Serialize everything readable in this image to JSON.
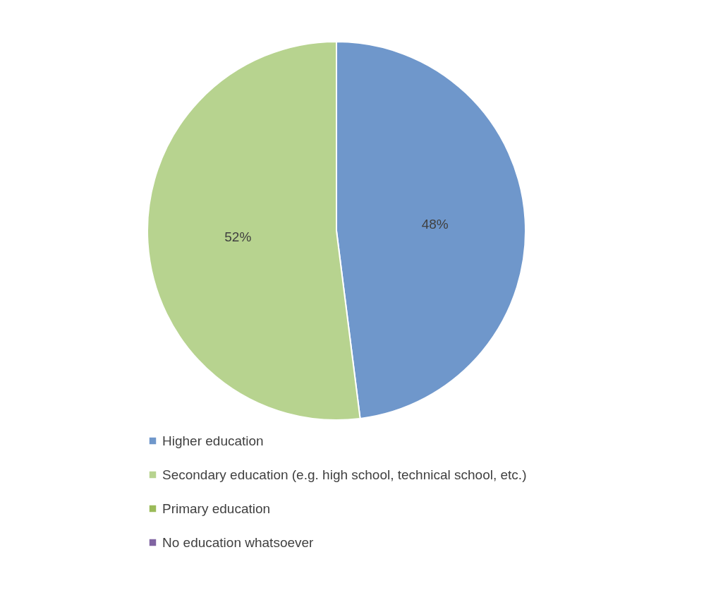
{
  "chart_data": {
    "type": "pie",
    "categories": [
      "Higher education",
      "Secondary education (e.g. high school, technical school, etc.)",
      "Primary education",
      "No education whatsoever"
    ],
    "values": [
      48,
      52,
      0,
      0
    ],
    "colors": [
      "#6f97cb",
      "#b7d38f",
      "#9bbb59",
      "#8064a2"
    ],
    "value_labels": [
      "48%",
      "52%",
      null,
      null
    ],
    "legend": "bottom"
  }
}
